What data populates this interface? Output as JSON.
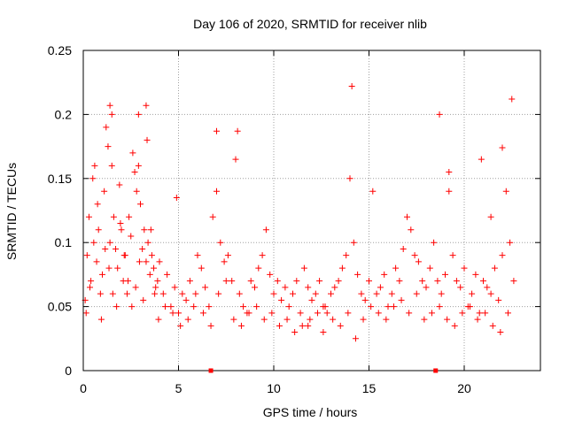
{
  "chart_data": {
    "type": "scatter",
    "title": "Day 106 of 2020, SRMTID for receiver nlib",
    "xlabel": "GPS time / hours",
    "ylabel": "SRMTID / TECUs",
    "xlim": [
      0,
      24
    ],
    "ylim": [
      0,
      0.25
    ],
    "x_ticks": [
      0,
      5,
      10,
      15,
      20
    ],
    "x_tick_labels": [
      "0",
      "5",
      "10",
      "15",
      "20"
    ],
    "y_ticks": [
      0,
      0.05,
      0.1,
      0.15,
      0.2,
      0.25
    ],
    "y_tick_labels": [
      "0",
      "0.05",
      "0.1",
      "0.15",
      "0.2",
      "0.25"
    ],
    "grid": true,
    "legend": "none",
    "marker": "plus",
    "colors": {
      "series": "#ff0000",
      "grid": "#a0a0a0",
      "axes": "#000000"
    },
    "x_markers": [
      6.7,
      18.5
    ],
    "series": [
      {
        "x": [
          0.1,
          0.2,
          0.3,
          0.4,
          0.5,
          0.6,
          0.7,
          0.8,
          0.9,
          1.0,
          1.1,
          1.2,
          1.3,
          1.4,
          1.5,
          1.6,
          1.7,
          1.8,
          1.9,
          2.0,
          2.1,
          2.2,
          2.3,
          2.4,
          2.5,
          2.6,
          2.7,
          2.8,
          2.9,
          3.0,
          3.1,
          3.2,
          3.3,
          3.4,
          3.5,
          3.6,
          3.7,
          3.8,
          3.9,
          4.0,
          4.2,
          4.4,
          4.6,
          4.8,
          5.0,
          5.2,
          5.4,
          5.6,
          5.8,
          6.0,
          6.2,
          6.4,
          6.6,
          6.8,
          7.0,
          7.2,
          7.4,
          7.6,
          7.8,
          8.0,
          8.2,
          8.4,
          8.6,
          8.8,
          9.0,
          9.2,
          9.4,
          9.6,
          9.8,
          10.0,
          10.2,
          10.4,
          10.6,
          10.8,
          11.0,
          11.2,
          11.4,
          11.6,
          11.8,
          12.0,
          12.2,
          12.4,
          12.6,
          12.8,
          13.0,
          13.2,
          13.4,
          13.6,
          13.8,
          14.0,
          14.2,
          14.4,
          14.6,
          14.8,
          15.0,
          15.2,
          15.4,
          15.6,
          15.8,
          16.0,
          16.2,
          16.4,
          16.6,
          16.8,
          17.0,
          17.2,
          17.4,
          17.6,
          17.8,
          18.0,
          18.2,
          18.4,
          18.6,
          18.8,
          19.0,
          19.2,
          19.4,
          19.6,
          19.8,
          20.0,
          20.2,
          20.4,
          20.6,
          20.8,
          21.0,
          21.2,
          21.4,
          21.6,
          21.8,
          22.0,
          22.2,
          22.4,
          22.6,
          0.15,
          0.35,
          0.55,
          0.75,
          0.95,
          1.15,
          1.35,
          1.55,
          1.75,
          1.95,
          2.15,
          2.35,
          2.55,
          2.75,
          2.95,
          3.15,
          3.35,
          3.55,
          3.75,
          3.95,
          4.3,
          4.7,
          5.1,
          5.5,
          5.9,
          6.3,
          6.7,
          7.1,
          7.5,
          7.9,
          8.3,
          8.7,
          9.1,
          9.5,
          9.9,
          10.3,
          10.7,
          11.1,
          11.5,
          11.9,
          12.3,
          12.7,
          13.1,
          13.5,
          13.9,
          14.3,
          14.7,
          15.1,
          15.5,
          15.9,
          16.3,
          16.7,
          17.1,
          17.5,
          17.9,
          18.3,
          18.7,
          19.1,
          19.5,
          19.9,
          20.3,
          20.7,
          21.1,
          21.5,
          21.9,
          22.3,
          1.4,
          1.5,
          2.9,
          3.3,
          14.1,
          22.5,
          18.7,
          22.0,
          8.1,
          7.0,
          19.2,
          4.9,
          20.9,
          21.4,
          12.6,
          11.8
        ],
        "y": [
          0.055,
          0.09,
          0.12,
          0.07,
          0.15,
          0.16,
          0.085,
          0.11,
          0.06,
          0.075,
          0.14,
          0.19,
          0.175,
          0.1,
          0.16,
          0.12,
          0.095,
          0.08,
          0.145,
          0.11,
          0.07,
          0.09,
          0.06,
          0.12,
          0.105,
          0.17,
          0.155,
          0.14,
          0.16,
          0.13,
          0.095,
          0.11,
          0.085,
          0.1,
          0.075,
          0.09,
          0.08,
          0.065,
          0.07,
          0.085,
          0.06,
          0.075,
          0.05,
          0.065,
          0.045,
          0.06,
          0.055,
          0.07,
          0.05,
          0.09,
          0.08,
          0.065,
          0.05,
          0.12,
          0.14,
          0.1,
          0.085,
          0.09,
          0.07,
          0.165,
          0.06,
          0.05,
          0.045,
          0.07,
          0.065,
          0.08,
          0.09,
          0.11,
          0.075,
          0.06,
          0.07,
          0.055,
          0.065,
          0.05,
          0.06,
          0.07,
          0.045,
          0.08,
          0.065,
          0.055,
          0.06,
          0.07,
          0.05,
          0.045,
          0.06,
          0.065,
          0.07,
          0.08,
          0.09,
          0.15,
          0.1,
          0.075,
          0.06,
          0.055,
          0.07,
          0.14,
          0.06,
          0.065,
          0.075,
          0.05,
          0.06,
          0.08,
          0.07,
          0.095,
          0.12,
          0.11,
          0.09,
          0.085,
          0.07,
          0.065,
          0.08,
          0.1,
          0.07,
          0.06,
          0.075,
          0.14,
          0.09,
          0.07,
          0.065,
          0.08,
          0.05,
          0.06,
          0.075,
          0.045,
          0.07,
          0.065,
          0.06,
          0.08,
          0.055,
          0.09,
          0.14,
          0.1,
          0.07,
          0.045,
          0.065,
          0.1,
          0.13,
          0.04,
          0.095,
          0.08,
          0.06,
          0.05,
          0.115,
          0.09,
          0.07,
          0.05,
          0.065,
          0.085,
          0.055,
          0.18,
          0.11,
          0.06,
          0.04,
          0.05,
          0.045,
          0.035,
          0.04,
          0.06,
          0.045,
          0.035,
          0.06,
          0.07,
          0.04,
          0.035,
          0.045,
          0.05,
          0.04,
          0.045,
          0.035,
          0.04,
          0.03,
          0.035,
          0.04,
          0.045,
          0.05,
          0.04,
          0.035,
          0.045,
          0.025,
          0.04,
          0.05,
          0.045,
          0.04,
          0.05,
          0.055,
          0.045,
          0.06,
          0.04,
          0.045,
          0.05,
          0.04,
          0.035,
          0.045,
          0.05,
          0.04,
          0.045,
          0.035,
          0.03,
          0.045,
          0.207,
          0.2,
          0.2,
          0.207,
          0.222,
          0.212,
          0.2,
          0.174,
          0.187,
          0.187,
          0.155,
          0.135,
          0.165,
          0.12,
          0.03,
          0.035
        ]
      }
    ]
  }
}
